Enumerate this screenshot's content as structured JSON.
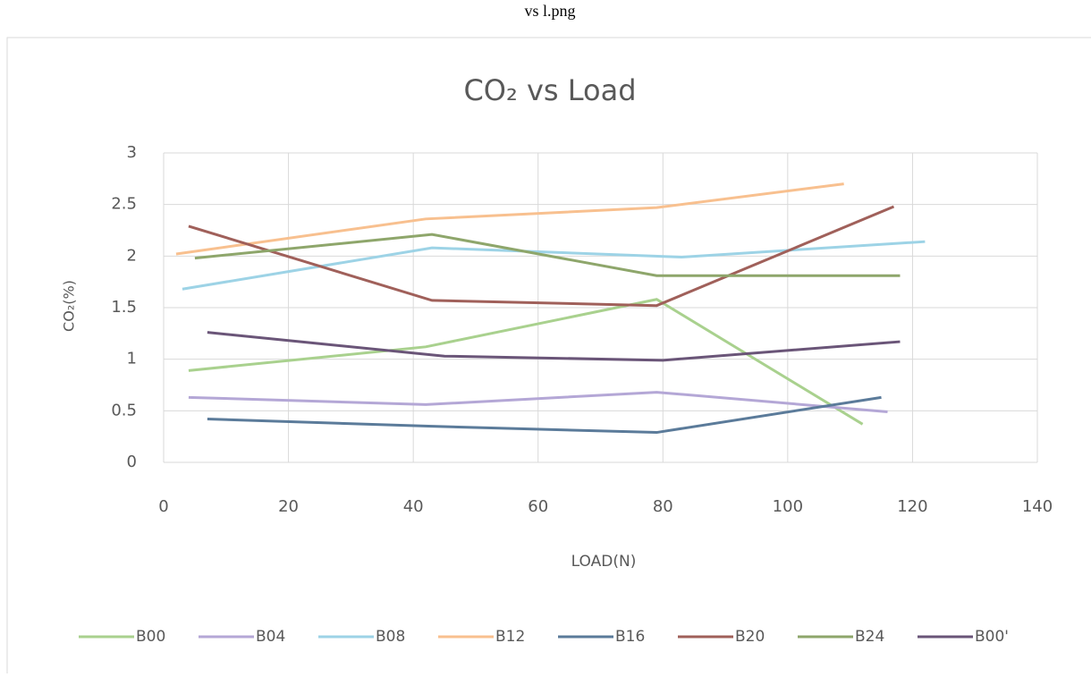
{
  "header": {
    "title": "vs l.png"
  },
  "chart_data": {
    "type": "line",
    "title": "CO₂ vs Load",
    "x_label": "LOAD(N)",
    "y_label": "CO₂(%)",
    "xlim": [
      0,
      140
    ],
    "xticks": [
      0,
      20,
      40,
      60,
      80,
      100,
      120,
      140
    ],
    "ylim": [
      0,
      3
    ],
    "yticks": [
      0,
      0.5,
      1,
      1.5,
      2,
      2.5,
      3
    ],
    "grid": true,
    "legend": "bottom",
    "series": [
      {
        "name": "B00",
        "color": "#a9d18e",
        "x": [
          4,
          42,
          79,
          112
        ],
        "values": [
          0.89,
          1.12,
          1.58,
          0.37
        ]
      },
      {
        "name": "B04",
        "color": "#b4a7d6",
        "x": [
          4,
          42,
          79,
          116
        ],
        "values": [
          0.63,
          0.56,
          0.68,
          0.49
        ]
      },
      {
        "name": "B08",
        "color": "#9dd3e6",
        "x": [
          3,
          43,
          83,
          122
        ],
        "values": [
          1.68,
          2.08,
          1.99,
          2.14
        ]
      },
      {
        "name": "B12",
        "color": "#f8c08f",
        "x": [
          2,
          42,
          79,
          109
        ],
        "values": [
          2.02,
          2.36,
          2.47,
          2.7
        ]
      },
      {
        "name": "B16",
        "color": "#5b7b9a",
        "x": [
          7,
          43,
          79,
          115
        ],
        "values": [
          0.42,
          0.35,
          0.29,
          0.63
        ]
      },
      {
        "name": "B20",
        "color": "#a0605a",
        "x": [
          4,
          43,
          79,
          117
        ],
        "values": [
          2.29,
          1.57,
          1.52,
          2.48
        ]
      },
      {
        "name": "B24",
        "color": "#8ea66b",
        "x": [
          5,
          43,
          79,
          118
        ],
        "values": [
          1.98,
          2.21,
          1.81,
          1.81
        ]
      },
      {
        "name": "B00'",
        "color": "#6a5578",
        "x": [
          7,
          45,
          80,
          118
        ],
        "values": [
          1.26,
          1.03,
          0.99,
          1.17
        ]
      }
    ]
  }
}
